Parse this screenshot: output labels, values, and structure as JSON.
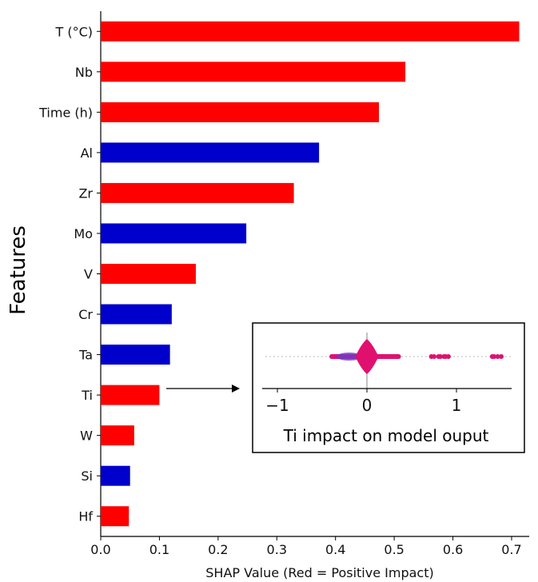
{
  "chart_data": {
    "type": "bar",
    "orientation": "horizontal",
    "categories": [
      "T (°C)",
      "Nb",
      "Time (h)",
      "Al",
      "Zr",
      "Mo",
      "V",
      "Cr",
      "Ta",
      "Ti",
      "W",
      "Si",
      "Hf"
    ],
    "values": [
      0.713,
      0.519,
      0.474,
      0.372,
      0.329,
      0.248,
      0.162,
      0.121,
      0.118,
      0.1,
      0.057,
      0.05,
      0.048
    ],
    "bar_colors": [
      "#ff0000",
      "#ff0000",
      "#ff0000",
      "#0000cc",
      "#ff0000",
      "#0000cc",
      "#ff0000",
      "#0000cc",
      "#0000cc",
      "#ff0000",
      "#ff0000",
      "#0000cc",
      "#ff0000"
    ],
    "xlabel": "SHAP Value (Red = Positive Impact)",
    "ylabel": "Features",
    "xlim": [
      0,
      0.73
    ],
    "xticks": [
      "0.0",
      "0.1",
      "0.2",
      "0.3",
      "0.4",
      "0.5",
      "0.6",
      "0.7"
    ],
    "grid": false,
    "inset": {
      "caption": "Ti impact on model ouput",
      "xlim": [
        -1.2,
        1.6
      ],
      "xticks": [
        "−1",
        "0",
        "1"
      ],
      "outlier_points": [
        0.72,
        0.75,
        0.8,
        0.82,
        0.86,
        0.88,
        0.91,
        1.4,
        1.42,
        1.46,
        1.5
      ]
    }
  }
}
